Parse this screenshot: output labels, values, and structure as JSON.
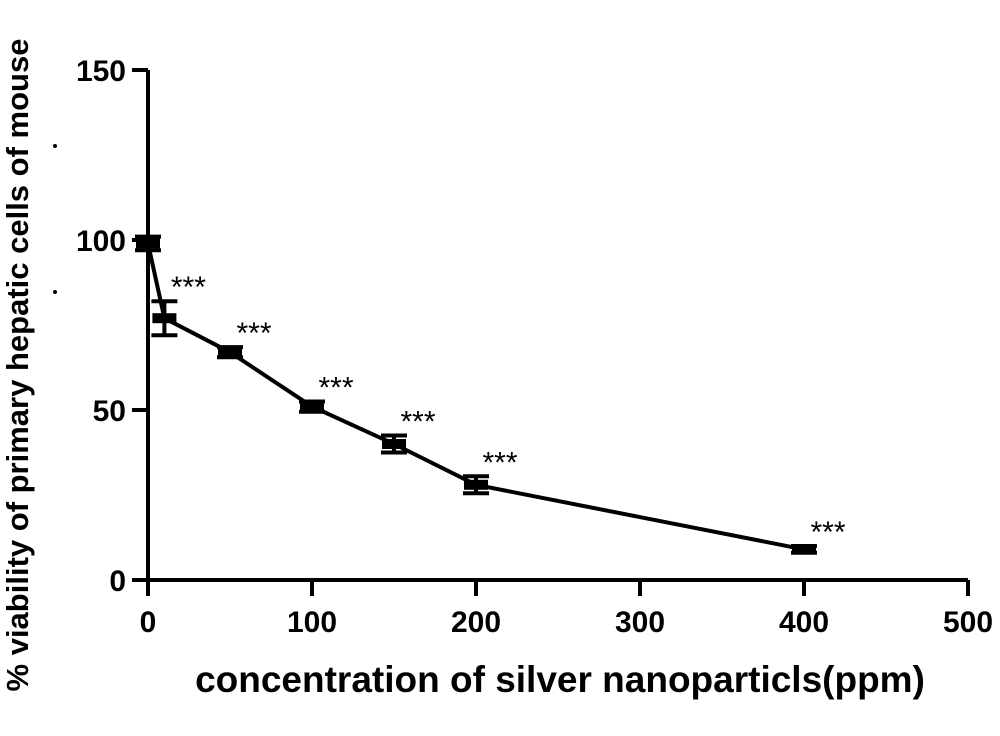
{
  "chart_data": {
    "type": "line",
    "title": "",
    "xlabel": "concentration of silver nanoparticls(ppm)",
    "ylabel": "% viability of primary hepatic cells of mouse",
    "xlim": [
      0,
      500
    ],
    "ylim": [
      0,
      150
    ],
    "x_ticks": [
      0,
      100,
      200,
      300,
      400,
      500
    ],
    "y_ticks": [
      0,
      50,
      100,
      150
    ],
    "grid": false,
    "legend": "none",
    "series": [
      {
        "x": [
          0,
          10,
          50,
          100,
          150,
          200,
          400
        ],
        "y": [
          99,
          77,
          67,
          51,
          40,
          28,
          9
        ],
        "error": [
          2,
          5,
          1.5,
          1.5,
          2.5,
          2.5,
          1
        ],
        "annotations": [
          "",
          "***",
          "***",
          "***",
          "***",
          "***",
          "***"
        ]
      }
    ],
    "colors": {
      "line": "#000000"
    }
  }
}
